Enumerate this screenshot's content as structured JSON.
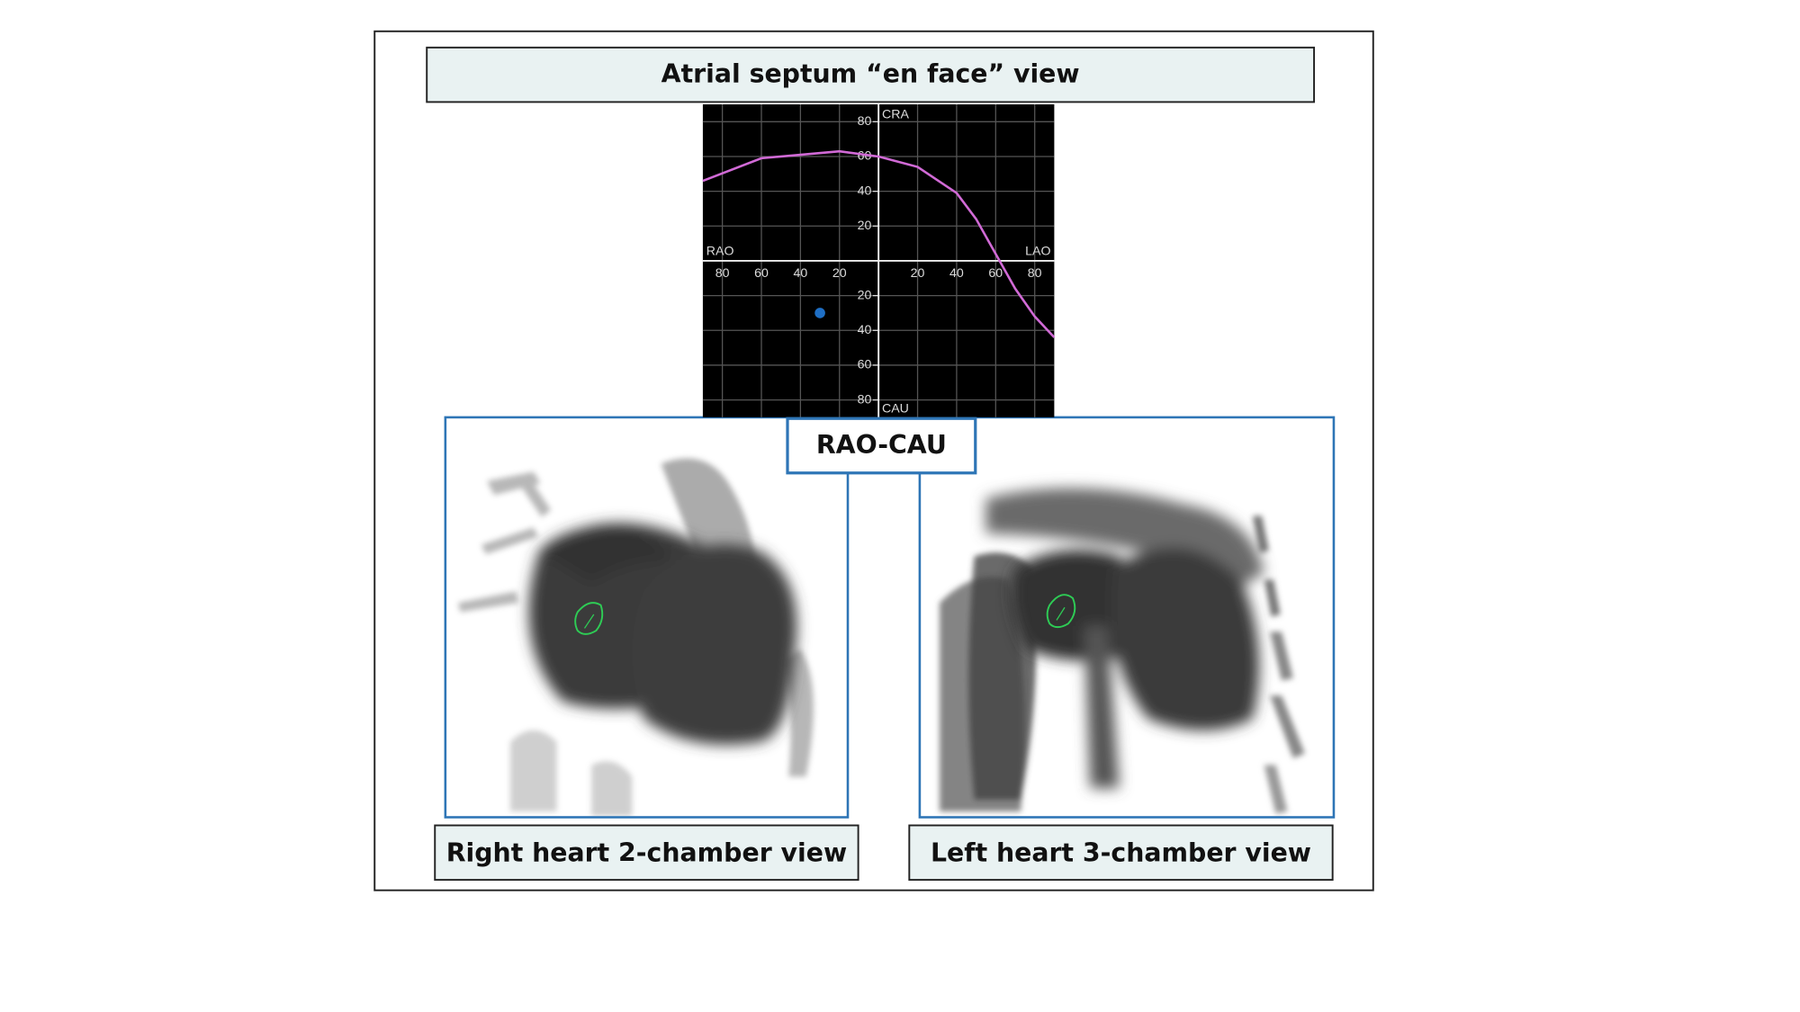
{
  "header": {
    "title": "Atrial septum “en face” view"
  },
  "view_label": "RAO-CAU",
  "panels": [
    {
      "caption": "Right heart 2-chamber view"
    },
    {
      "caption": "Left heart 3-chamber view"
    }
  ],
  "chart_data": {
    "type": "line",
    "axis_labels": {
      "left": "RAO",
      "right": "LAO",
      "top": "CRA",
      "bottom": "CAU"
    },
    "x": [
      -90,
      -60,
      -40,
      -20,
      0,
      20,
      40,
      50,
      60,
      70,
      80,
      90
    ],
    "series": [
      {
        "color": "#d16ad6",
        "values": [
          46,
          59,
          61,
          63,
          60,
          54,
          39,
          24,
          4,
          -16,
          -32,
          -44
        ]
      }
    ],
    "marker": {
      "x": -30,
      "y": -30,
      "color": "#1f6fc5"
    },
    "xlim": [
      -90,
      90
    ],
    "ylim": [
      -90,
      90
    ],
    "xticks": [
      {
        "value": -80,
        "label": "80"
      },
      {
        "value": -60,
        "label": "60"
      },
      {
        "value": -40,
        "label": "40"
      },
      {
        "value": -20,
        "label": "20"
      },
      20,
      40,
      60,
      80
    ],
    "yticks": [
      {
        "value": -80,
        "label": "80"
      },
      {
        "value": -60,
        "label": "60"
      },
      {
        "value": -40,
        "label": "40"
      },
      {
        "value": -20,
        "label": "20"
      },
      20,
      40,
      60,
      80
    ],
    "grid": true
  }
}
